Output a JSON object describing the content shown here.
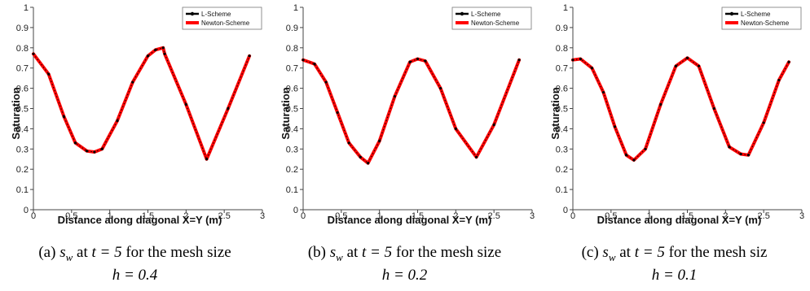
{
  "chart_data": [
    {
      "type": "line",
      "xlabel": "Distance along diagonal X=Y (m)",
      "ylabel": "Saturation",
      "xlim": [
        0,
        3
      ],
      "ylim": [
        0,
        1
      ],
      "x_ticks": [
        "0",
        "0.5",
        "1",
        "1.5",
        "2",
        "2.5",
        "3"
      ],
      "y_ticks": [
        "0",
        "0.1",
        "0.2",
        "0.3",
        "0.4",
        "0.5",
        "0.6",
        "0.7",
        "0.8",
        "0.9",
        "1"
      ],
      "legend_position": "top-right",
      "series": [
        {
          "name": "L-Scheme",
          "color": "#000000",
          "marker": "circle",
          "x": [
            0,
            0.2,
            0.4,
            0.55,
            0.7,
            0.8,
            0.9,
            1.1,
            1.3,
            1.5,
            1.6,
            1.7,
            1.72,
            2.0,
            2.27,
            2.55,
            2.83
          ],
          "y": [
            0.77,
            0.67,
            0.46,
            0.33,
            0.29,
            0.285,
            0.3,
            0.44,
            0.63,
            0.76,
            0.79,
            0.8,
            0.77,
            0.52,
            0.25,
            0.5,
            0.76
          ]
        },
        {
          "name": "Newton-Scheme",
          "color": "#ff0000",
          "marker": "none",
          "x": [
            0,
            0.2,
            0.4,
            0.55,
            0.7,
            0.8,
            0.9,
            1.1,
            1.3,
            1.5,
            1.6,
            1.7,
            1.72,
            2.0,
            2.27,
            2.55,
            2.83
          ],
          "y": [
            0.77,
            0.67,
            0.46,
            0.33,
            0.29,
            0.285,
            0.3,
            0.44,
            0.63,
            0.76,
            0.79,
            0.8,
            0.77,
            0.52,
            0.25,
            0.5,
            0.76
          ]
        }
      ],
      "caption": {
        "prefix": "(a)",
        "var": "s",
        "sub": "w",
        "mid": "at",
        "time": "t = 5",
        "text": "for the mesh size",
        "mesh": "h = 0.4"
      }
    },
    {
      "type": "line",
      "xlabel": "Distance along diagonal X=Y (m)",
      "ylabel": "Saturation",
      "xlim": [
        0,
        3
      ],
      "ylim": [
        0,
        1
      ],
      "x_ticks": [
        "0",
        "0.5",
        "1",
        "1.5",
        "2",
        "2.5",
        "3"
      ],
      "y_ticks": [
        "0",
        "0.1",
        "0.2",
        "0.3",
        "0.4",
        "0.5",
        "0.6",
        "0.7",
        "0.8",
        "0.9",
        "1"
      ],
      "legend_position": "top-right",
      "series": [
        {
          "name": "L-Scheme",
          "color": "#000000",
          "marker": "circle",
          "x": [
            0,
            0.15,
            0.3,
            0.45,
            0.6,
            0.75,
            0.85,
            1.0,
            1.2,
            1.4,
            1.5,
            1.6,
            1.8,
            2.0,
            2.27,
            2.5,
            2.83
          ],
          "y": [
            0.74,
            0.72,
            0.63,
            0.48,
            0.33,
            0.26,
            0.23,
            0.34,
            0.56,
            0.73,
            0.745,
            0.735,
            0.6,
            0.4,
            0.26,
            0.42,
            0.74
          ]
        },
        {
          "name": "Newton-Scheme",
          "color": "#ff0000",
          "marker": "none",
          "x": [
            0,
            0.15,
            0.3,
            0.45,
            0.6,
            0.75,
            0.85,
            1.0,
            1.2,
            1.4,
            1.5,
            1.6,
            1.8,
            2.0,
            2.27,
            2.5,
            2.83
          ],
          "y": [
            0.74,
            0.72,
            0.63,
            0.48,
            0.33,
            0.26,
            0.23,
            0.34,
            0.56,
            0.73,
            0.745,
            0.735,
            0.6,
            0.4,
            0.26,
            0.42,
            0.74
          ]
        }
      ],
      "caption": {
        "prefix": "(b)",
        "var": "s",
        "sub": "w",
        "mid": "at",
        "time": "t = 5",
        "text": "for the mesh size",
        "mesh": "h = 0.2"
      }
    },
    {
      "type": "line",
      "xlabel": "Distance along diagonal X=Y (m)",
      "ylabel": "Saturation",
      "xlim": [
        0,
        3
      ],
      "ylim": [
        0,
        1
      ],
      "x_ticks": [
        "0",
        "0.5",
        "1",
        "1.5",
        "2",
        "2.5",
        "3"
      ],
      "y_ticks": [
        "0",
        "0.1",
        "0.2",
        "0.3",
        "0.4",
        "0.5",
        "0.6",
        "0.7",
        "0.8",
        "0.9",
        "1"
      ],
      "legend_position": "top-right",
      "series": [
        {
          "name": "L-Scheme",
          "color": "#000000",
          "marker": "circle",
          "x": [
            0,
            0.1,
            0.25,
            0.4,
            0.55,
            0.7,
            0.8,
            0.95,
            1.15,
            1.35,
            1.5,
            1.65,
            1.85,
            2.05,
            2.2,
            2.3,
            2.5,
            2.7,
            2.83
          ],
          "y": [
            0.74,
            0.745,
            0.7,
            0.58,
            0.41,
            0.27,
            0.245,
            0.3,
            0.52,
            0.71,
            0.75,
            0.71,
            0.5,
            0.31,
            0.275,
            0.27,
            0.43,
            0.64,
            0.73
          ]
        },
        {
          "name": "Newton-Scheme",
          "color": "#ff0000",
          "marker": "none",
          "x": [
            0,
            0.1,
            0.25,
            0.4,
            0.55,
            0.7,
            0.8,
            0.95,
            1.15,
            1.35,
            1.5,
            1.65,
            1.85,
            2.05,
            2.2,
            2.3,
            2.5,
            2.7,
            2.83
          ],
          "y": [
            0.74,
            0.745,
            0.7,
            0.58,
            0.41,
            0.27,
            0.245,
            0.3,
            0.52,
            0.71,
            0.75,
            0.71,
            0.5,
            0.31,
            0.275,
            0.27,
            0.43,
            0.64,
            0.73
          ]
        }
      ],
      "caption": {
        "prefix": "(c)",
        "var": "s",
        "sub": "w",
        "mid": "at",
        "time": "t = 5",
        "text": "for the mesh siz",
        "mesh": "h = 0.1"
      }
    }
  ]
}
